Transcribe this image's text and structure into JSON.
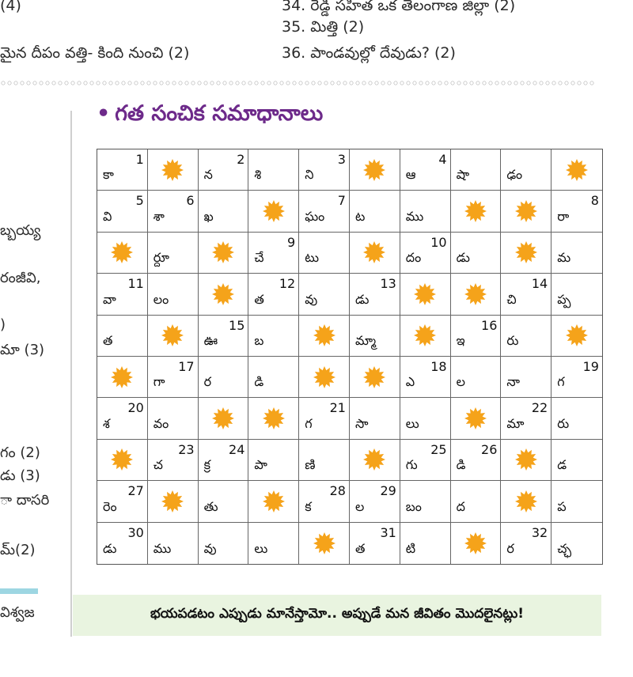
{
  "clues_top": {
    "c34": "34. రెడ్డి సహిత ఒక తెలంగాణ జిల్లా (2)",
    "left_fragment_top": "(4)",
    "c35": "35. మిత్తి (2)",
    "left_clue_bottom": "మైన దీపం వత్తి- కింది నుంచి (2)",
    "c36": "36. పాండవుల్లో దేవుడు? (2)"
  },
  "heading": {
    "bullet": "•",
    "title": "గత సంచిక సమాధానాలు"
  },
  "left_fragments": [
    "బ్బయ్య",
    "రంజీవి,",
    ")",
    "మా (3)",
    "గం (2)",
    "డు (3)",
    "ా దాసరి",
    "మ్(2)",
    "విశ్వజ"
  ],
  "grid": [
    [
      {
        "l": "కా",
        "n": "1"
      },
      {
        "s": 1
      },
      {
        "l": "న",
        "n": "2"
      },
      {
        "l": "శి"
      },
      {
        "l": "ని",
        "n": "3"
      },
      {
        "s": 1
      },
      {
        "l": "ఆ",
        "n": "4"
      },
      {
        "l": "షా"
      },
      {
        "l": "ఢం"
      },
      {
        "s": 1
      }
    ],
    [
      {
        "l": "వి",
        "n": "5"
      },
      {
        "l": "శా",
        "n": "6"
      },
      {
        "l": "ఖ"
      },
      {
        "s": 1
      },
      {
        "l": "ఘం",
        "n": "7"
      },
      {
        "l": "ట"
      },
      {
        "l": "ము"
      },
      {
        "s": 1
      },
      {
        "s": 1
      },
      {
        "l": "రా",
        "n": "8"
      }
    ],
    [
      {
        "s": 1
      },
      {
        "l": "ర్దూ"
      },
      {
        "s": 1
      },
      {
        "l": "చే",
        "n": "9"
      },
      {
        "l": "టు"
      },
      {
        "s": 1
      },
      {
        "l": "దం",
        "n": "10"
      },
      {
        "l": "డు"
      },
      {
        "s": 1
      },
      {
        "l": "మ"
      }
    ],
    [
      {
        "l": "వా",
        "n": "11"
      },
      {
        "l": "లం"
      },
      {
        "s": 1
      },
      {
        "l": "త",
        "n": "12"
      },
      {
        "l": "వు"
      },
      {
        "l": "డు",
        "n": "13"
      },
      {
        "s": 1
      },
      {
        "s": 1
      },
      {
        "l": "చి",
        "n": "14"
      },
      {
        "l": "ప్ప"
      }
    ],
    [
      {
        "l": "త"
      },
      {
        "s": 1
      },
      {
        "l": "ఊ",
        "n": "15"
      },
      {
        "l": "బ"
      },
      {
        "s": 1
      },
      {
        "l": "మ్మా"
      },
      {
        "s": 1
      },
      {
        "l": "ఇ",
        "n": "16"
      },
      {
        "l": "రు"
      },
      {
        "s": 1
      }
    ],
    [
      {
        "s": 1
      },
      {
        "l": "గా",
        "n": "17"
      },
      {
        "l": "ర"
      },
      {
        "l": "డి"
      },
      {
        "s": 1
      },
      {
        "s": 1
      },
      {
        "l": "ఎ",
        "n": "18"
      },
      {
        "l": "ల"
      },
      {
        "l": "నా"
      },
      {
        "l": "గ",
        "n": "19"
      }
    ],
    [
      {
        "l": "శ",
        "n": "20"
      },
      {
        "l": "వం"
      },
      {
        "s": 1
      },
      {
        "s": 1
      },
      {
        "l": "గ",
        "n": "21"
      },
      {
        "l": "సా"
      },
      {
        "l": "లు"
      },
      {
        "s": 1
      },
      {
        "l": "మా",
        "n": "22"
      },
      {
        "l": "రు"
      }
    ],
    [
      {
        "s": 1
      },
      {
        "l": "చ",
        "n": "23"
      },
      {
        "l": "క్ర",
        "n": "24"
      },
      {
        "l": "పా"
      },
      {
        "l": "ణి"
      },
      {
        "s": 1
      },
      {
        "l": "గు",
        "n": "25"
      },
      {
        "l": "డి",
        "n": "26"
      },
      {
        "s": 1
      },
      {
        "l": "డ"
      }
    ],
    [
      {
        "l": "రెం",
        "n": "27"
      },
      {
        "s": 1
      },
      {
        "l": "తు"
      },
      {
        "s": 1
      },
      {
        "l": "క",
        "n": "28"
      },
      {
        "l": "ల",
        "n": "29"
      },
      {
        "l": "బం"
      },
      {
        "l": "ద"
      },
      {
        "s": 1
      },
      {
        "l": "ప"
      }
    ],
    [
      {
        "l": "డు",
        "n": "30"
      },
      {
        "l": "ము"
      },
      {
        "l": "వు"
      },
      {
        "l": "లు"
      },
      {
        "s": 1
      },
      {
        "l": "త",
        "n": "31"
      },
      {
        "l": "టి"
      },
      {
        "s": 1
      },
      {
        "l": "ర",
        "n": "32"
      },
      {
        "l": "చ్ఛ"
      }
    ]
  ],
  "quote": "భయపడటం ఎప్పుడు మానేస్తామో.. అప్పుడే మన జీవితం మొదలైనట్లు!",
  "colors": {
    "sun": "#f5a31a",
    "heading": "#6d2a8a",
    "quote_bg": "#e9f4e0"
  }
}
